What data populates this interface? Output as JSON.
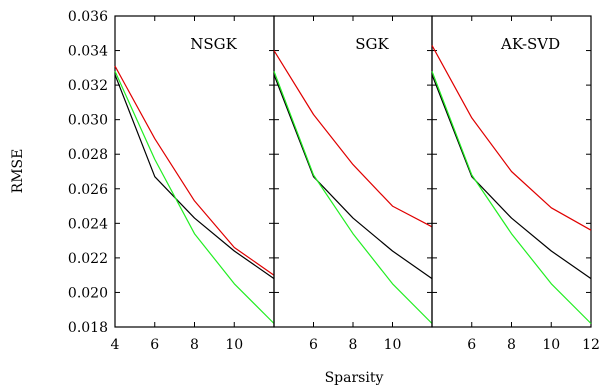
{
  "chart_data": {
    "type": "line",
    "xlabel": "Sparsity",
    "ylabel": "RMSE",
    "ylim": [
      0.018,
      0.036
    ],
    "yticks": [
      "0.018",
      "0.020",
      "0.022",
      "0.024",
      "0.026",
      "0.028",
      "0.030",
      "0.032",
      "0.034",
      "0.036"
    ],
    "grid": false,
    "legend": "none",
    "panels": [
      {
        "title": "NSGK",
        "xlim": [
          4,
          12
        ],
        "xticks": [
          "4",
          "6",
          "8",
          "10"
        ],
        "series": [
          {
            "color": "#e00000",
            "x": [
              4,
              6,
              8,
              10,
              12
            ],
            "y": [
              0.0331,
              0.0289,
              0.0253,
              0.0226,
              0.021
            ]
          },
          {
            "color": "#000000",
            "x": [
              4,
              6,
              8,
              10,
              12
            ],
            "y": [
              0.0326,
              0.0267,
              0.0243,
              0.0224,
              0.0208
            ]
          },
          {
            "color": "#22ee22",
            "x": [
              4,
              6,
              8,
              10,
              12
            ],
            "y": [
              0.0328,
              0.0277,
              0.0234,
              0.0205,
              0.0182
            ]
          }
        ]
      },
      {
        "title": "SGK",
        "xlim": [
          4,
          12
        ],
        "xticks": [
          "6",
          "8",
          "10"
        ],
        "series": [
          {
            "color": "#e00000",
            "x": [
              4,
              6,
              8,
              10,
              12
            ],
            "y": [
              0.034,
              0.0303,
              0.0274,
              0.025,
              0.0238
            ]
          },
          {
            "color": "#000000",
            "x": [
              4,
              6,
              8,
              10,
              12
            ],
            "y": [
              0.0326,
              0.0267,
              0.0243,
              0.0224,
              0.0208
            ]
          },
          {
            "color": "#22ee22",
            "x": [
              4,
              6,
              8,
              10,
              12
            ],
            "y": [
              0.0328,
              0.0268,
              0.0234,
              0.0205,
              0.0182
            ]
          }
        ]
      },
      {
        "title": "AK-SVD",
        "xlim": [
          4,
          12
        ],
        "xticks": [
          "6",
          "8",
          "10",
          "12"
        ],
        "series": [
          {
            "color": "#e00000",
            "x": [
              4,
              6,
              8,
              10,
              12
            ],
            "y": [
              0.0343,
              0.0301,
              0.027,
              0.0249,
              0.0236
            ]
          },
          {
            "color": "#000000",
            "x": [
              4,
              6,
              8,
              10,
              12
            ],
            "y": [
              0.0326,
              0.0267,
              0.0243,
              0.0224,
              0.0208
            ]
          },
          {
            "color": "#22ee22",
            "x": [
              4,
              6,
              8,
              10,
              12
            ],
            "y": [
              0.0328,
              0.0268,
              0.0234,
              0.0205,
              0.0182
            ]
          }
        ]
      }
    ]
  }
}
